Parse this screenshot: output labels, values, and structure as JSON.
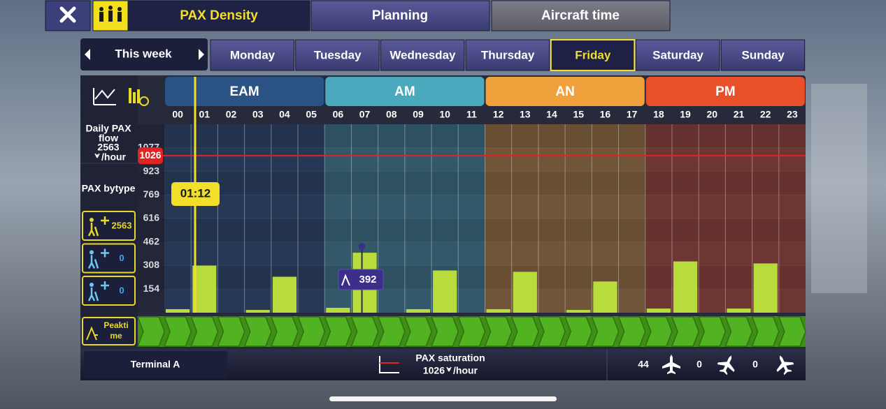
{
  "tabs": [
    "PAX Density",
    "Planning",
    "Aircraft time"
  ],
  "week": "This week",
  "days": [
    "Monday",
    "Tuesday",
    "Wednesday",
    "Thursday",
    "Friday",
    "Saturday",
    "Sunday"
  ],
  "side": {
    "daily_flow_label": [
      "Daily PAX",
      "flow"
    ],
    "daily_flow_value": "2563",
    "per_hour": "/hour",
    "bytype_label": "PAX bytype",
    "type_counts": [
      "2563",
      "0",
      "0"
    ],
    "peak_label": [
      "Peakti",
      "me"
    ]
  },
  "cursor": "01:12",
  "footer": {
    "terminal": "Terminal A",
    "saturation_label": "PAX saturation",
    "per_hour": "/hour",
    "aircraft_counts": [
      "44",
      "0",
      "0"
    ]
  },
  "chart_data": {
    "type": "bar",
    "categories": [
      "00",
      "01",
      "02",
      "03",
      "04",
      "05",
      "06",
      "07",
      "08",
      "09",
      "10",
      "11",
      "12",
      "13",
      "14",
      "15",
      "16",
      "17",
      "18",
      "19",
      "20",
      "21",
      "22",
      "23"
    ],
    "values": [
      23,
      308,
      0,
      18,
      235,
      0,
      32,
      392,
      0,
      23,
      276,
      0,
      23,
      267,
      0,
      18,
      204,
      0,
      27,
      335,
      0,
      27,
      322,
      0
    ],
    "color": "#b8dc3c",
    "ylim": [
      0,
      1232
    ],
    "yticks": [
      154,
      308,
      462,
      616,
      769,
      923,
      1077
    ],
    "saturation": 1026,
    "saturation_color": "#e02424",
    "periods": [
      {
        "name": "EAM",
        "color": "#2b5385"
      },
      {
        "name": "AM",
        "color": "#4aa9bd"
      },
      {
        "name": "AN",
        "color": "#f0a13b"
      },
      {
        "name": "PM",
        "color": "#e8502a"
      }
    ]
  }
}
